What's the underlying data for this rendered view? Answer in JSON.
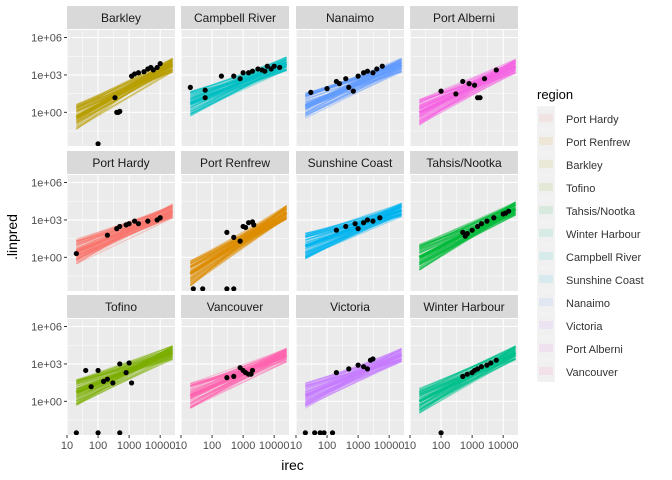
{
  "chart_data": {
    "type": "scatter",
    "xlabel": "irec",
    "ylabel": ".linpred",
    "x_scale": "log10",
    "y_scale": "log10",
    "x_ticks": [
      10,
      100,
      1000,
      10000
    ],
    "x_tick_labels": [
      "10",
      "100",
      "1000",
      "10000"
    ],
    "y_ticks": [
      1,
      1000,
      1000000
    ],
    "y_tick_labels": [
      "1e+00",
      "1e+03",
      "1e+06"
    ],
    "xlim": [
      10,
      30000
    ],
    "ylim": [
      0.002,
      4000000
    ],
    "grid": true,
    "legend": {
      "title": "region",
      "placement": "right",
      "entries": [
        {
          "label": "Port Hardy",
          "color": "#F8766D"
        },
        {
          "label": "Port Renfrew",
          "color": "#DE8C00"
        },
        {
          "label": "Barkley",
          "color": "#B79F00"
        },
        {
          "label": "Tofino",
          "color": "#7CAE00"
        },
        {
          "label": "Tahsis/Nootka",
          "color": "#00BA38"
        },
        {
          "label": "Winter Harbour",
          "color": "#00C08B"
        },
        {
          "label": "Campbell River",
          "color": "#00BFC4"
        },
        {
          "label": "Sunshine Coast",
          "color": "#00B4F0"
        },
        {
          "label": "Nanaimo",
          "color": "#619CFF"
        },
        {
          "label": "Victoria",
          "color": "#C77CFF"
        },
        {
          "label": "Port Alberni",
          "color": "#F564E3"
        },
        {
          "label": "Vancouver",
          "color": "#FF64B0"
        }
      ]
    },
    "panels": [
      {
        "region": "Barkley",
        "color": "#B79F00",
        "band": {
          "x_min": 20,
          "x_max": 25000,
          "y_at_xmin": 0.4,
          "y_at_xmax": 6000
        },
        "points": [
          [
            1200,
            800
          ],
          [
            2000,
            1500
          ],
          [
            3000,
            1800
          ],
          [
            4000,
            3000
          ],
          [
            5000,
            4000
          ],
          [
            6000,
            2500
          ],
          [
            8000,
            4000
          ],
          [
            10000,
            8000
          ],
          [
            1500,
            1200
          ],
          [
            400,
            1
          ],
          [
            450,
            1
          ],
          [
            500,
            1.2
          ],
          [
            350,
            15
          ],
          [
            100,
            0.003
          ]
        ]
      },
      {
        "region": "Campbell River",
        "color": "#00BFC4",
        "band": {
          "x_min": 20,
          "x_max": 25000,
          "y_at_xmin": 5,
          "y_at_xmax": 8000
        },
        "points": [
          [
            20,
            100
          ],
          [
            60,
            60
          ],
          [
            60,
            15
          ],
          [
            200,
            800
          ],
          [
            500,
            800
          ],
          [
            800,
            500
          ],
          [
            1000,
            1500
          ],
          [
            1500,
            1500
          ],
          [
            2000,
            2000
          ],
          [
            3000,
            3000
          ],
          [
            4000,
            2500
          ],
          [
            5000,
            2000
          ],
          [
            6000,
            5000
          ],
          [
            8000,
            3000
          ],
          [
            10000,
            5000
          ],
          [
            15000,
            4000
          ]
        ]
      },
      {
        "region": "Nanaimo",
        "color": "#619CFF",
        "band": {
          "x_min": 20,
          "x_max": 25000,
          "y_at_xmin": 3,
          "y_at_xmax": 6000
        },
        "points": [
          [
            30,
            40
          ],
          [
            100,
            80
          ],
          [
            200,
            300
          ],
          [
            250,
            200
          ],
          [
            400,
            500
          ],
          [
            500,
            100
          ],
          [
            700,
            50
          ],
          [
            1000,
            800
          ],
          [
            1500,
            1500
          ],
          [
            2000,
            2000
          ],
          [
            3000,
            1500
          ],
          [
            4000,
            3000
          ],
          [
            6000,
            5000
          ]
        ]
      },
      {
        "region": "Port Alberni",
        "color": "#F564E3",
        "band": {
          "x_min": 20,
          "x_max": 25000,
          "y_at_xmin": 1,
          "y_at_xmax": 5000
        },
        "points": [
          [
            100,
            50
          ],
          [
            300,
            30
          ],
          [
            500,
            300
          ],
          [
            800,
            200
          ],
          [
            1200,
            150
          ],
          [
            1500,
            15
          ],
          [
            1800,
            15
          ],
          [
            2500,
            500
          ],
          [
            6000,
            2500
          ]
        ]
      },
      {
        "region": "Port Hardy",
        "color": "#F8766D",
        "band": {
          "x_min": 20,
          "x_max": 25000,
          "y_at_xmin": 3,
          "y_at_xmax": 5000
        },
        "points": [
          [
            20,
            2
          ],
          [
            200,
            60
          ],
          [
            400,
            200
          ],
          [
            500,
            300
          ],
          [
            800,
            400
          ],
          [
            1000,
            500
          ],
          [
            1500,
            800
          ],
          [
            2000,
            500
          ],
          [
            4000,
            800
          ],
          [
            8000,
            1000
          ],
          [
            10000,
            1500
          ]
        ]
      },
      {
        "region": "Port Renfrew",
        "color": "#DE8C00",
        "band": {
          "x_min": 20,
          "x_max": 25000,
          "y_at_xmin": 0.05,
          "y_at_xmax": 4000
        },
        "points": [
          [
            300,
            100
          ],
          [
            500,
            40
          ],
          [
            800,
            20
          ],
          [
            1000,
            300
          ],
          [
            1200,
            250
          ],
          [
            1500,
            600
          ],
          [
            2000,
            700
          ],
          [
            2200,
            400
          ],
          [
            25,
            0.003
          ],
          [
            50,
            0.003
          ],
          [
            300,
            0.003
          ],
          [
            500,
            0.003
          ]
        ]
      },
      {
        "region": "Sunshine Coast",
        "color": "#00B4F0",
        "band": {
          "x_min": 20,
          "x_max": 25000,
          "y_at_xmin": 8,
          "y_at_xmax": 6000
        },
        "points": [
          [
            200,
            150
          ],
          [
            400,
            300
          ],
          [
            800,
            500
          ],
          [
            1000,
            200
          ],
          [
            1500,
            600
          ],
          [
            2000,
            1000
          ],
          [
            3000,
            800
          ],
          [
            5000,
            1500
          ]
        ]
      },
      {
        "region": "Tahsis/Nootka",
        "color": "#00BA38",
        "band": {
          "x_min": 20,
          "x_max": 25000,
          "y_at_xmin": 1,
          "y_at_xmax": 8000
        },
        "points": [
          [
            500,
            100
          ],
          [
            600,
            50
          ],
          [
            700,
            80
          ],
          [
            1000,
            150
          ],
          [
            1500,
            300
          ],
          [
            2000,
            500
          ],
          [
            3000,
            800
          ],
          [
            5000,
            1500
          ],
          [
            10000,
            3000
          ],
          [
            12000,
            3500
          ],
          [
            15000,
            5000
          ]
        ]
      },
      {
        "region": "Tofino",
        "color": "#7CAE00",
        "band": {
          "x_min": 20,
          "x_max": 25000,
          "y_at_xmin": 5,
          "y_at_xmax": 8000
        },
        "points": [
          [
            40,
            300
          ],
          [
            60,
            15
          ],
          [
            100,
            300
          ],
          [
            150,
            40
          ],
          [
            200,
            60
          ],
          [
            300,
            30
          ],
          [
            500,
            1000
          ],
          [
            800,
            200
          ],
          [
            1000,
            1200
          ],
          [
            1200,
            30
          ],
          [
            20,
            0.003
          ],
          [
            100,
            0.003
          ],
          [
            500,
            0.003
          ]
        ]
      },
      {
        "region": "Vancouver",
        "color": "#FF64B0",
        "band": {
          "x_min": 20,
          "x_max": 25000,
          "y_at_xmin": 3,
          "y_at_xmax": 5000
        },
        "points": [
          [
            300,
            80
          ],
          [
            500,
            100
          ],
          [
            800,
            500
          ],
          [
            1000,
            300
          ],
          [
            1200,
            200
          ],
          [
            1500,
            150
          ],
          [
            1800,
            150
          ],
          [
            2000,
            300
          ]
        ]
      },
      {
        "region": "Victoria",
        "color": "#C77CFF",
        "band": {
          "x_min": 20,
          "x_max": 25000,
          "y_at_xmin": 3,
          "y_at_xmax": 5000
        },
        "points": [
          [
            200,
            200
          ],
          [
            500,
            400
          ],
          [
            1000,
            800
          ],
          [
            1500,
            600
          ],
          [
            2000,
            400
          ],
          [
            2500,
            2000
          ],
          [
            3000,
            2500
          ],
          [
            20,
            0.003
          ],
          [
            40,
            0.003
          ],
          [
            60,
            0.003
          ],
          [
            80,
            0.003
          ],
          [
            150,
            0.003
          ]
        ]
      },
      {
        "region": "Winter Harbour",
        "color": "#00C08B",
        "band": {
          "x_min": 20,
          "x_max": 25000,
          "y_at_xmin": 1,
          "y_at_xmax": 8000
        },
        "points": [
          [
            500,
            100
          ],
          [
            700,
            150
          ],
          [
            1000,
            200
          ],
          [
            1200,
            300
          ],
          [
            1500,
            400
          ],
          [
            2000,
            600
          ],
          [
            3000,
            800
          ],
          [
            4000,
            1200
          ],
          [
            6000,
            2000
          ],
          [
            100,
            0.003
          ]
        ]
      }
    ]
  }
}
